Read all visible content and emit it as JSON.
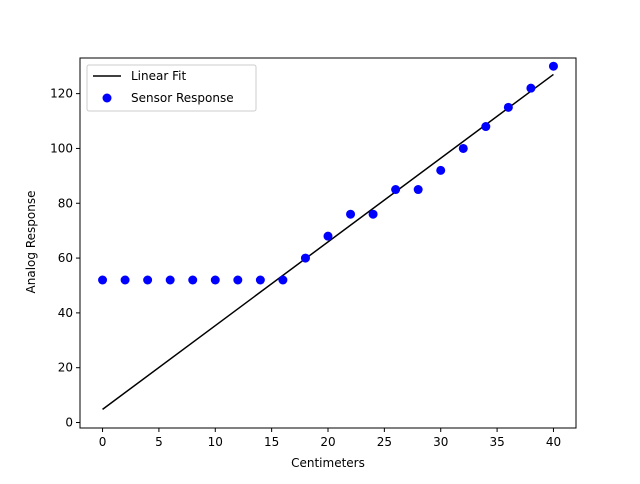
{
  "chart_data": {
    "type": "scatter",
    "xlabel": "Centimeters",
    "ylabel": "Analog Response",
    "xlim": [
      -2,
      42
    ],
    "ylim": [
      -2,
      133
    ],
    "xticks": [
      0,
      5,
      10,
      15,
      20,
      25,
      30,
      35,
      40
    ],
    "yticks": [
      0,
      20,
      40,
      60,
      80,
      100,
      120
    ],
    "xtick_labels": [
      "0",
      "5",
      "10",
      "15",
      "20",
      "25",
      "30",
      "35",
      "40"
    ],
    "ytick_labels": [
      "0",
      "20",
      "40",
      "60",
      "80",
      "100",
      "120"
    ],
    "legend_placement": "upper-left",
    "grid": false,
    "series": [
      {
        "name": "Linear Fit",
        "kind": "line",
        "color": "#000000",
        "x": [
          0,
          40
        ],
        "y": [
          4.8,
          127
        ]
      },
      {
        "name": "Sensor Response",
        "kind": "scatter",
        "color": "#0000ff",
        "x": [
          0,
          2,
          4,
          6,
          8,
          10,
          12,
          14,
          16,
          18,
          20,
          22,
          24,
          26,
          28,
          30,
          32,
          34,
          36,
          38,
          40
        ],
        "y": [
          52,
          52,
          52,
          52,
          52,
          52,
          52,
          52,
          52,
          60,
          68,
          76,
          76,
          85,
          85,
          92,
          100,
          108,
          115,
          122,
          130
        ]
      }
    ]
  }
}
